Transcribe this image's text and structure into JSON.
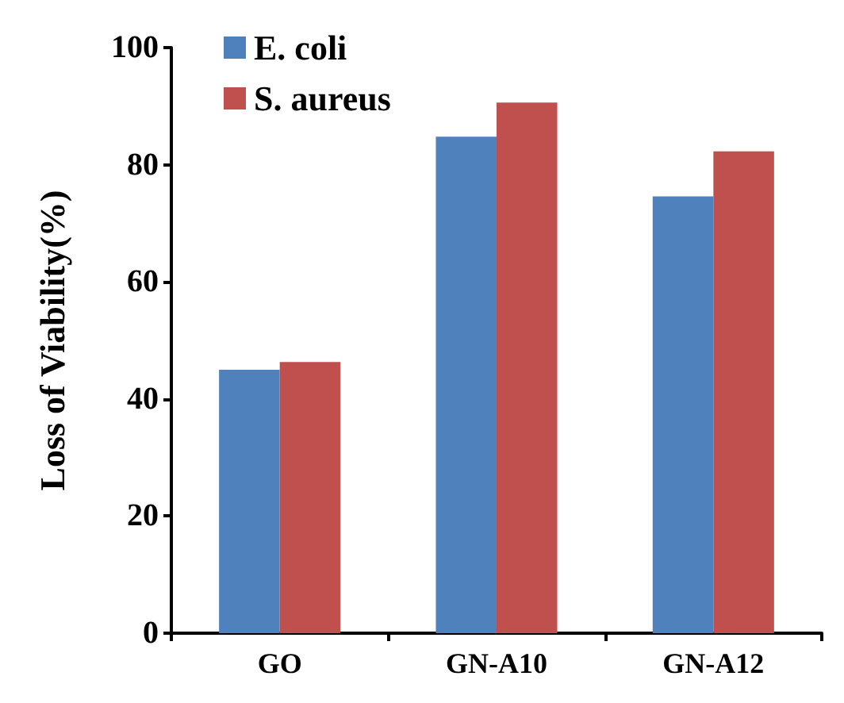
{
  "chart_data": {
    "type": "bar",
    "ylabel": "Loss of Viability(%)",
    "categories": [
      "GO",
      "GN-A10",
      "GN-A12"
    ],
    "series": [
      {
        "name": "E. coli",
        "color": "#4f81bd",
        "values": [
          45.0,
          84.8,
          74.6
        ]
      },
      {
        "name": "S. aureus",
        "color": "#c0504d",
        "values": [
          46.3,
          90.6,
          82.3
        ]
      }
    ],
    "ylim": [
      0,
      100
    ],
    "yticks": [
      0,
      20,
      40,
      60,
      80,
      100
    ],
    "grid": false,
    "legend": "top left"
  }
}
